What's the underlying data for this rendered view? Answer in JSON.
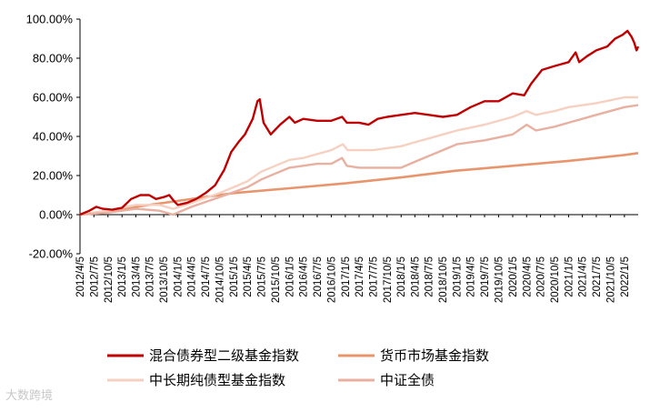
{
  "chart_data": {
    "type": "line",
    "title": "",
    "xlabel": "",
    "ylabel": "",
    "ylim": [
      -20,
      100
    ],
    "yticks": [
      -20,
      0,
      20,
      40,
      60,
      80,
      100
    ],
    "ytick_labels": [
      "-20.00%",
      "0.00%",
      "20.00%",
      "40.00%",
      "60.00%",
      "80.00%",
      "100.00%"
    ],
    "grid": false,
    "legend_position": "bottom",
    "x_start": "2012/4/5",
    "x_end": "2022/4/5",
    "x_tick_labels": [
      "2012/4/5",
      "2012/7/5",
      "2012/10/5",
      "2013/1/5",
      "2013/4/5",
      "2013/7/5",
      "2013/10/5",
      "2014/1/5",
      "2014/4/5",
      "2014/7/5",
      "2014/10/5",
      "2015/1/5",
      "2015/4/5",
      "2015/7/5",
      "2015/10/5",
      "2016/1/5",
      "2016/4/5",
      "2016/7/5",
      "2016/10/5",
      "2017/1/5",
      "2017/4/5",
      "2017/7/5",
      "2017/10/5",
      "2018/1/5",
      "2018/4/5",
      "2018/7/5",
      "2018/10/5",
      "2019/1/5",
      "2019/4/5",
      "2019/7/5",
      "2019/10/5",
      "2020/1/5",
      "2020/4/5",
      "2020/7/5",
      "2020/10/5",
      "2021/1/5",
      "2021/4/5",
      "2021/7/5",
      "2021/10/5",
      "2022/1/5"
    ],
    "series": [
      {
        "name": "混合债券型二级基金指数",
        "color": "#c00000",
        "points": [
          [
            "2012/4/5",
            0
          ],
          [
            "2012/6/5",
            2
          ],
          [
            "2012/7/20",
            4
          ],
          [
            "2012/9/1",
            3
          ],
          [
            "2012/11/1",
            2.5
          ],
          [
            "2013/1/5",
            3.5
          ],
          [
            "2013/3/5",
            8
          ],
          [
            "2013/5/5",
            10
          ],
          [
            "2013/7/1",
            10
          ],
          [
            "2013/8/15",
            8
          ],
          [
            "2013/10/5",
            9
          ],
          [
            "2013/11/10",
            10
          ],
          [
            "2013/12/10",
            7
          ],
          [
            "2014/1/5",
            5
          ],
          [
            "2014/3/5",
            6
          ],
          [
            "2014/5/5",
            8
          ],
          [
            "2014/7/5",
            11
          ],
          [
            "2014/9/5",
            15
          ],
          [
            "2014/11/5",
            23
          ],
          [
            "2014/12/20",
            32
          ],
          [
            "2015/2/5",
            37
          ],
          [
            "2015/3/20",
            41
          ],
          [
            "2015/5/10",
            49
          ],
          [
            "2015/6/10",
            58
          ],
          [
            "2015/6/25",
            59
          ],
          [
            "2015/7/20",
            47
          ],
          [
            "2015/9/5",
            41
          ],
          [
            "2015/11/5",
            46
          ],
          [
            "2016/1/5",
            50
          ],
          [
            "2016/2/10",
            47
          ],
          [
            "2016/4/5",
            49
          ],
          [
            "2016/7/5",
            48
          ],
          [
            "2016/10/5",
            48
          ],
          [
            "2016/12/15",
            50
          ],
          [
            "2017/1/15",
            47
          ],
          [
            "2017/4/5",
            47
          ],
          [
            "2017/6/5",
            46
          ],
          [
            "2017/8/5",
            49
          ],
          [
            "2017/10/5",
            50
          ],
          [
            "2018/1/5",
            51
          ],
          [
            "2018/4/5",
            52
          ],
          [
            "2018/7/5",
            51
          ],
          [
            "2018/10/5",
            50
          ],
          [
            "2019/1/5",
            51
          ],
          [
            "2019/4/5",
            55
          ],
          [
            "2019/7/5",
            58
          ],
          [
            "2019/10/5",
            58
          ],
          [
            "2020/1/5",
            62
          ],
          [
            "2020/3/20",
            61
          ],
          [
            "2020/5/5",
            67
          ],
          [
            "2020/7/15",
            74
          ],
          [
            "2020/10/5",
            76
          ],
          [
            "2021/1/5",
            78
          ],
          [
            "2021/2/20",
            83
          ],
          [
            "2021/3/15",
            78
          ],
          [
            "2021/5/5",
            81
          ],
          [
            "2021/7/5",
            84
          ],
          [
            "2021/9/15",
            86
          ],
          [
            "2021/11/5",
            90
          ],
          [
            "2021/12/25",
            92
          ],
          [
            "2022/1/25",
            94
          ],
          [
            "2022/2/20",
            91
          ],
          [
            "2022/3/10",
            88
          ],
          [
            "2022/3/25",
            84
          ],
          [
            "2022/4/5",
            86
          ]
        ]
      },
      {
        "name": "货币市场基金指数",
        "color": "#e8956e",
        "points": [
          [
            "2012/4/5",
            0
          ],
          [
            "2013/1/5",
            3
          ],
          [
            "2014/1/5",
            7
          ],
          [
            "2015/1/5",
            11
          ],
          [
            "2016/1/5",
            13.5
          ],
          [
            "2017/1/5",
            16
          ],
          [
            "2018/1/5",
            19
          ],
          [
            "2019/1/5",
            22.5
          ],
          [
            "2020/1/5",
            25
          ],
          [
            "2021/1/5",
            27.5
          ],
          [
            "2022/1/5",
            30.5
          ],
          [
            "2022/4/5",
            31.5
          ]
        ]
      },
      {
        "name": "中长期纯债型基金指数",
        "color": "#f6d0c0",
        "points": [
          [
            "2012/4/5",
            0
          ],
          [
            "2012/10/5",
            2
          ],
          [
            "2013/4/5",
            5
          ],
          [
            "2013/9/5",
            5
          ],
          [
            "2013/12/5",
            3
          ],
          [
            "2014/4/5",
            6
          ],
          [
            "2014/10/5",
            11
          ],
          [
            "2015/4/5",
            17
          ],
          [
            "2015/7/5",
            22
          ],
          [
            "2015/10/5",
            25
          ],
          [
            "2016/1/5",
            28
          ],
          [
            "2016/4/5",
            29
          ],
          [
            "2016/7/5",
            31
          ],
          [
            "2016/10/5",
            33
          ],
          [
            "2016/12/20",
            36
          ],
          [
            "2017/1/20",
            33
          ],
          [
            "2017/4/5",
            33
          ],
          [
            "2017/7/5",
            33
          ],
          [
            "2017/10/5",
            34
          ],
          [
            "2018/1/5",
            35
          ],
          [
            "2018/4/5",
            37
          ],
          [
            "2018/7/5",
            39
          ],
          [
            "2018/10/5",
            41
          ],
          [
            "2019/1/5",
            43
          ],
          [
            "2019/7/5",
            46
          ],
          [
            "2020/1/5",
            50
          ],
          [
            "2020/4/5",
            53
          ],
          [
            "2020/6/5",
            51
          ],
          [
            "2020/10/5",
            53
          ],
          [
            "2021/1/5",
            55
          ],
          [
            "2021/7/5",
            57
          ],
          [
            "2022/1/5",
            60
          ],
          [
            "2022/4/5",
            60
          ]
        ]
      },
      {
        "name": "中证全债",
        "color": "#e8b0a0",
        "points": [
          [
            "2012/4/5",
            0
          ],
          [
            "2012/10/5",
            1
          ],
          [
            "2013/4/5",
            3
          ],
          [
            "2013/9/5",
            2
          ],
          [
            "2013/12/5",
            0
          ],
          [
            "2014/4/5",
            4
          ],
          [
            "2014/10/5",
            9
          ],
          [
            "2015/4/5",
            14
          ],
          [
            "2015/7/5",
            18
          ],
          [
            "2015/10/5",
            21
          ],
          [
            "2016/1/5",
            24
          ],
          [
            "2016/7/5",
            26
          ],
          [
            "2016/10/5",
            26
          ],
          [
            "2016/12/15",
            29
          ],
          [
            "2017/1/15",
            25
          ],
          [
            "2017/4/5",
            24
          ],
          [
            "2017/7/5",
            24
          ],
          [
            "2017/10/5",
            24
          ],
          [
            "2018/1/5",
            24
          ],
          [
            "2018/4/5",
            27
          ],
          [
            "2018/7/5",
            30
          ],
          [
            "2018/10/5",
            33
          ],
          [
            "2019/1/5",
            36
          ],
          [
            "2019/7/5",
            38
          ],
          [
            "2020/1/5",
            41
          ],
          [
            "2020/4/5",
            46
          ],
          [
            "2020/6/5",
            43
          ],
          [
            "2020/10/5",
            45
          ],
          [
            "2021/1/5",
            47
          ],
          [
            "2021/7/5",
            51
          ],
          [
            "2022/1/5",
            55
          ],
          [
            "2022/4/5",
            56
          ]
        ]
      }
    ]
  },
  "watermark": "大数跨境"
}
